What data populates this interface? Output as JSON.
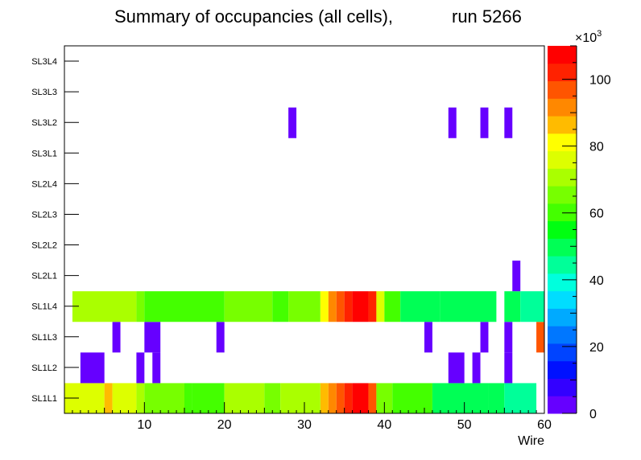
{
  "chart_data": {
    "type": "heatmap",
    "title_left": "Summary of occupancies (all cells),",
    "title_right": "run 5266",
    "xlabel": "Wire",
    "ylabel": "",
    "x_range": [
      0,
      60
    ],
    "x_ticks": [
      10,
      20,
      30,
      40,
      50,
      60
    ],
    "y_categories": [
      "SL1L1",
      "SL1L2",
      "SL1L3",
      "SL1L4",
      "SL2L1",
      "SL2L2",
      "SL2L3",
      "SL2L4",
      "SL3L1",
      "SL3L2",
      "SL3L3",
      "SL3L4"
    ],
    "z_range": [
      0,
      110000
    ],
    "z_ticks": [
      {
        "value": 0,
        "label": "0"
      },
      {
        "value": 20000,
        "label": "20"
      },
      {
        "value": 40000,
        "label": "40"
      },
      {
        "value": 60000,
        "label": "60"
      },
      {
        "value": 80000,
        "label": "80"
      },
      {
        "value": 100000,
        "label": "100"
      }
    ],
    "z_multiplier_base": "×10",
    "z_multiplier_exp": "3",
    "palette": [
      "#6600ff",
      "#3300ff",
      "#0011ff",
      "#0044ff",
      "#0077ff",
      "#00aaff",
      "#00ddff",
      "#00ffdd",
      "#00ff99",
      "#00ff55",
      "#00ff11",
      "#44ff00",
      "#77ff00",
      "#aaff00",
      "#ddff00",
      "#ffff00",
      "#ffbb00",
      "#ff8800",
      "#ff5500",
      "#ff2200",
      "#ff0000"
    ],
    "rows": [
      {
        "layer": "SL1L1",
        "cells": [
          {
            "x0": 0,
            "x1": 5,
            "value": 75000
          },
          {
            "x0": 5,
            "x1": 6,
            "value": 84000
          },
          {
            "x0": 6,
            "x1": 9,
            "value": 75000
          },
          {
            "x0": 9,
            "x1": 10,
            "value": 70000
          },
          {
            "x0": 10,
            "x1": 15,
            "value": 63000
          },
          {
            "x0": 15,
            "x1": 16,
            "value": 58000
          },
          {
            "x0": 16,
            "x1": 20,
            "value": 62000
          },
          {
            "x0": 20,
            "x1": 25,
            "value": 72000
          },
          {
            "x0": 25,
            "x1": 27,
            "value": 64000
          },
          {
            "x0": 27,
            "x1": 32,
            "value": 72000
          },
          {
            "x0": 32,
            "x1": 33,
            "value": 85000
          },
          {
            "x0": 33,
            "x1": 34,
            "value": 92000
          },
          {
            "x0": 34,
            "x1": 35,
            "value": 97000
          },
          {
            "x0": 35,
            "x1": 36,
            "value": 102000
          },
          {
            "x0": 36,
            "x1": 38,
            "value": 107000
          },
          {
            "x0": 38,
            "x1": 39,
            "value": 97000
          },
          {
            "x0": 39,
            "x1": 41,
            "value": 64000
          },
          {
            "x0": 41,
            "x1": 46,
            "value": 60000
          },
          {
            "x0": 46,
            "x1": 53,
            "value": 52000
          },
          {
            "x0": 53,
            "x1": 55,
            "value": 50000
          },
          {
            "x0": 55,
            "x1": 59,
            "value": 46000
          }
        ]
      },
      {
        "layer": "SL1L2",
        "cells": [
          {
            "x0": 2,
            "x1": 5,
            "value": 3000
          },
          {
            "x0": 9,
            "x1": 10,
            "value": 3000
          },
          {
            "x0": 11,
            "x1": 12,
            "value": 3000
          },
          {
            "x0": 48,
            "x1": 50,
            "value": 3000
          },
          {
            "x0": 51,
            "x1": 52,
            "value": 3000
          },
          {
            "x0": 55,
            "x1": 56,
            "value": 3000
          }
        ]
      },
      {
        "layer": "SL1L3",
        "cells": [
          {
            "x0": 6,
            "x1": 7,
            "value": 3000
          },
          {
            "x0": 10,
            "x1": 12,
            "value": 3000
          },
          {
            "x0": 19,
            "x1": 20,
            "value": 3000
          },
          {
            "x0": 45,
            "x1": 46,
            "value": 3000
          },
          {
            "x0": 52,
            "x1": 53,
            "value": 3000
          },
          {
            "x0": 55,
            "x1": 56,
            "value": 3000
          },
          {
            "x0": 59,
            "x1": 60,
            "value": 99000
          }
        ]
      },
      {
        "layer": "SL1L4",
        "cells": [
          {
            "x0": 1,
            "x1": 9,
            "value": 73000
          },
          {
            "x0": 9,
            "x1": 10,
            "value": 67000
          },
          {
            "x0": 10,
            "x1": 20,
            "value": 62000
          },
          {
            "x0": 20,
            "x1": 26,
            "value": 66000
          },
          {
            "x0": 26,
            "x1": 28,
            "value": 61000
          },
          {
            "x0": 28,
            "x1": 32,
            "value": 66000
          },
          {
            "x0": 32,
            "x1": 33,
            "value": 80000
          },
          {
            "x0": 33,
            "x1": 34,
            "value": 91000
          },
          {
            "x0": 34,
            "x1": 35,
            "value": 97000
          },
          {
            "x0": 35,
            "x1": 36,
            "value": 102000
          },
          {
            "x0": 36,
            "x1": 38,
            "value": 107000
          },
          {
            "x0": 38,
            "x1": 39,
            "value": 102000
          },
          {
            "x0": 39,
            "x1": 40,
            "value": 74000
          },
          {
            "x0": 40,
            "x1": 42,
            "value": 61000
          },
          {
            "x0": 42,
            "x1": 47,
            "value": 52000
          },
          {
            "x0": 47,
            "x1": 54,
            "value": 48000
          },
          {
            "x0": 55,
            "x1": 57,
            "value": 48000
          },
          {
            "x0": 57,
            "x1": 60,
            "value": 42000
          }
        ]
      },
      {
        "layer": "SL2L1",
        "cells": [
          {
            "x0": 56,
            "x1": 57,
            "value": 3000
          }
        ]
      },
      {
        "layer": "SL2L2",
        "cells": []
      },
      {
        "layer": "SL2L3",
        "cells": []
      },
      {
        "layer": "SL2L4",
        "cells": []
      },
      {
        "layer": "SL3L1",
        "cells": []
      },
      {
        "layer": "SL3L2",
        "cells": [
          {
            "x0": 28,
            "x1": 29,
            "value": 3000
          },
          {
            "x0": 48,
            "x1": 49,
            "value": 3000
          },
          {
            "x0": 52,
            "x1": 53,
            "value": 3000
          },
          {
            "x0": 55,
            "x1": 56,
            "value": 3000
          }
        ]
      },
      {
        "layer": "SL3L3",
        "cells": []
      },
      {
        "layer": "SL3L4",
        "cells": []
      }
    ]
  }
}
